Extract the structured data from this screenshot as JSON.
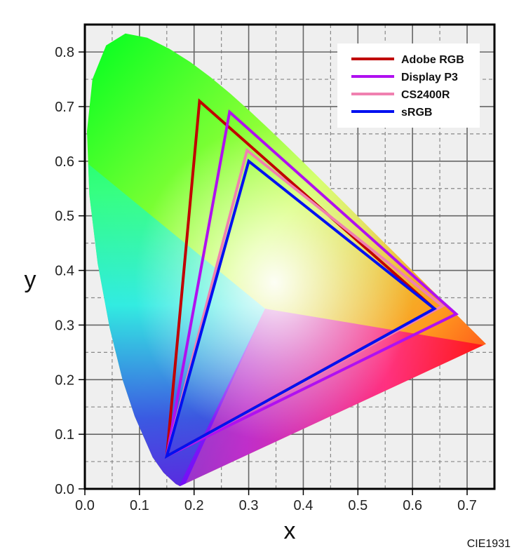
{
  "chart_data": {
    "type": "line",
    "title": "",
    "caption": "CIE1931",
    "xlabel": "x",
    "ylabel": "y",
    "xlim": [
      0.0,
      0.745
    ],
    "ylim": [
      0.0,
      0.835
    ],
    "xticks": [
      "0.0",
      "0.1",
      "0.2",
      "0.3",
      "0.4",
      "0.5",
      "0.6",
      "0.7"
    ],
    "yticks": [
      "0.0",
      "0.1",
      "0.2",
      "0.3",
      "0.4",
      "0.5",
      "0.6",
      "0.7",
      "0.8"
    ],
    "grid": {
      "major": true,
      "minor_dashed": true,
      "major_step": 0.1,
      "minor_step": 0.05
    },
    "legend_position": "upper right",
    "background_region": "CIE 1931 spectral locus (horseshoe) filled with chromaticity colors",
    "series": [
      {
        "name": "Adobe RGB",
        "color": "#c00000",
        "points": [
          [
            0.64,
            0.33
          ],
          [
            0.21,
            0.71
          ],
          [
            0.15,
            0.06
          ]
        ]
      },
      {
        "name": "Display P3",
        "color": "#b010f0",
        "points": [
          [
            0.68,
            0.32
          ],
          [
            0.265,
            0.69
          ],
          [
            0.15,
            0.06
          ]
        ]
      },
      {
        "name": "CS2400R",
        "color": "#f080b0",
        "points": [
          [
            0.655,
            0.335
          ],
          [
            0.297,
            0.62
          ],
          [
            0.15,
            0.06
          ]
        ]
      },
      {
        "name": "sRGB",
        "color": "#0010f0",
        "points": [
          [
            0.64,
            0.33
          ],
          [
            0.3,
            0.6
          ],
          [
            0.15,
            0.06
          ]
        ]
      }
    ]
  }
}
